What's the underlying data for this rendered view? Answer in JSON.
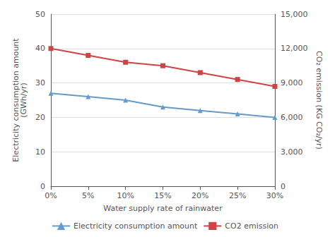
{
  "chart_data": {
    "type": "line",
    "xlabel": "Water supply rate of rainwater",
    "ylabel": "Electricity consumption amount\n(GWh/yr)",
    "y2label": "CO₂ emission (KG CO₂/yr)",
    "categories": [
      "0%",
      "5%",
      "10%",
      "15%",
      "20%",
      "25%",
      "30%"
    ],
    "series": [
      {
        "name": "Electricity consumption amount",
        "color": "#6699CC",
        "marker": "triangle",
        "values": [
          27,
          26,
          25,
          23,
          22,
          21,
          20
        ]
      },
      {
        "name": "CO2 emission",
        "color": "#CC4444",
        "marker": "square",
        "axis": "y2",
        "values": [
          12000,
          11400,
          10800,
          10500,
          9900,
          9300,
          8700
        ]
      }
    ],
    "ylim": [
      0,
      50
    ],
    "yticks": [
      0,
      10,
      20,
      30,
      40,
      50
    ],
    "y2lim": [
      0,
      15000
    ],
    "y2ticks": [
      0,
      {
        "value": 3000,
        "label": "3,000"
      },
      {
        "value": 6000,
        "label": "6,000"
      },
      {
        "value": 9000,
        "label": "9,000"
      },
      {
        "value": 12000,
        "label": "12,000"
      },
      {
        "value": 15000,
        "label": "15,000"
      }
    ],
    "grid": true,
    "legend": "bottom"
  }
}
